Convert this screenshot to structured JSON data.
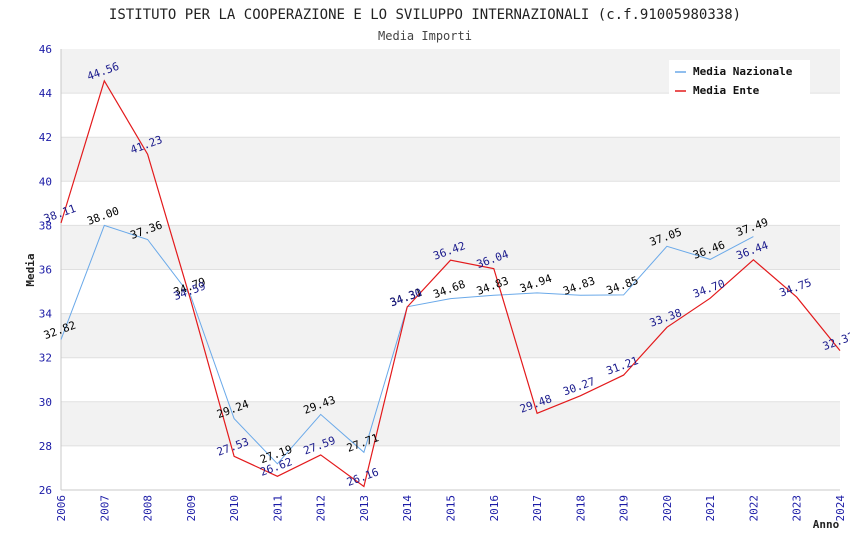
{
  "chart_data": {
    "type": "line",
    "title": "ISTITUTO PER LA COOPERAZIONE E LO SVILUPPO INTERNAZIONALI (c.f.91005980338)",
    "subtitle": "Media Importi",
    "xlabel": "Anno",
    "ylabel": "Media",
    "ylim": [
      26,
      46
    ],
    "yticks": [
      "26",
      "28",
      "30",
      "32",
      "34",
      "36",
      "38",
      "40",
      "42",
      "44",
      "46"
    ],
    "categories": [
      "2006",
      "2007",
      "2008",
      "2009",
      "2010",
      "2011",
      "2012",
      "2013",
      "2014",
      "2015",
      "2016",
      "2017",
      "2018",
      "2019",
      "2020",
      "2021",
      "2022",
      "2023",
      "2024"
    ],
    "grid": "horizontal bands",
    "legend_position": "top-right",
    "series": [
      {
        "name": "Media Nazionale",
        "color": "#6aa9e9",
        "label_color": "#000000",
        "values": [
          32.82,
          38.0,
          37.36,
          34.79,
          29.24,
          27.19,
          29.43,
          27.71,
          34.31,
          34.68,
          34.83,
          34.94,
          34.83,
          34.85,
          37.05,
          36.46,
          37.49,
          null,
          null
        ],
        "labels": [
          "32.82",
          "38.00",
          "37.36",
          "34.79",
          "29.24",
          "27.19",
          "29.43",
          "27.71",
          "34.31",
          "34.68",
          "34.83",
          "34.94",
          "34.83",
          "34.85",
          "37.05",
          "36.46",
          "37.49",
          "",
          ""
        ]
      },
      {
        "name": "Media Ente",
        "color": "#e31a1c",
        "label_color": "#1a1a8c",
        "values": [
          38.11,
          44.56,
          41.23,
          34.59,
          27.53,
          26.62,
          27.59,
          26.16,
          34.3,
          36.42,
          36.04,
          29.48,
          30.27,
          31.21,
          33.38,
          34.7,
          36.44,
          34.75,
          32.32
        ],
        "labels": [
          "38.11",
          "44.56",
          "41.23",
          "34.59",
          "27.53",
          "26.62",
          "27.59",
          "26.16",
          "34.30",
          "36.42",
          "36.04",
          "29.48",
          "30.27",
          "31.21",
          "33.38",
          "34.70",
          "36.44",
          "34.75",
          "32.32"
        ]
      }
    ]
  }
}
